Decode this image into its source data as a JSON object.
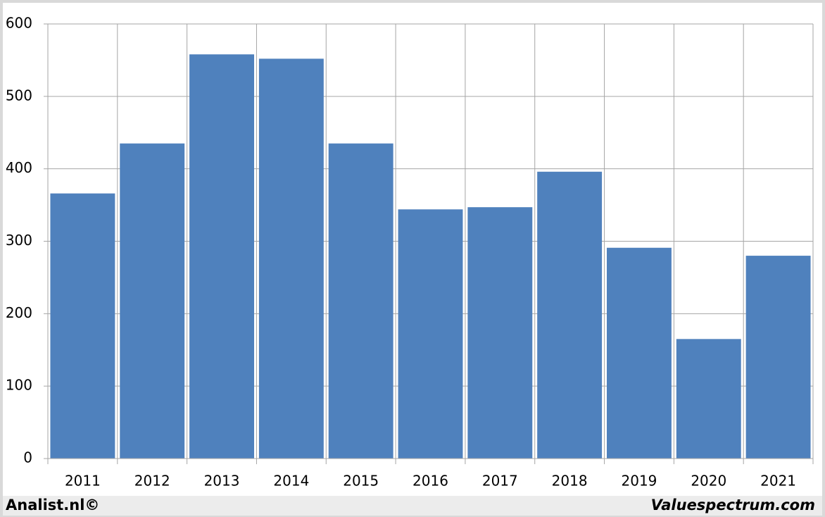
{
  "chart_data": {
    "type": "bar",
    "categories": [
      "2011",
      "2012",
      "2013",
      "2014",
      "2015",
      "2016",
      "2017",
      "2018",
      "2019",
      "2020",
      "2021"
    ],
    "values": [
      366,
      435,
      558,
      552,
      435,
      344,
      347,
      396,
      291,
      165,
      280
    ],
    "color": "#4f81bd",
    "ylim": [
      0,
      600
    ],
    "yticks": [
      0,
      100,
      200,
      300,
      400,
      500,
      600
    ],
    "grid": true
  },
  "footer": {
    "left": "Analist.nl©",
    "right": "Valuespectrum.com"
  }
}
